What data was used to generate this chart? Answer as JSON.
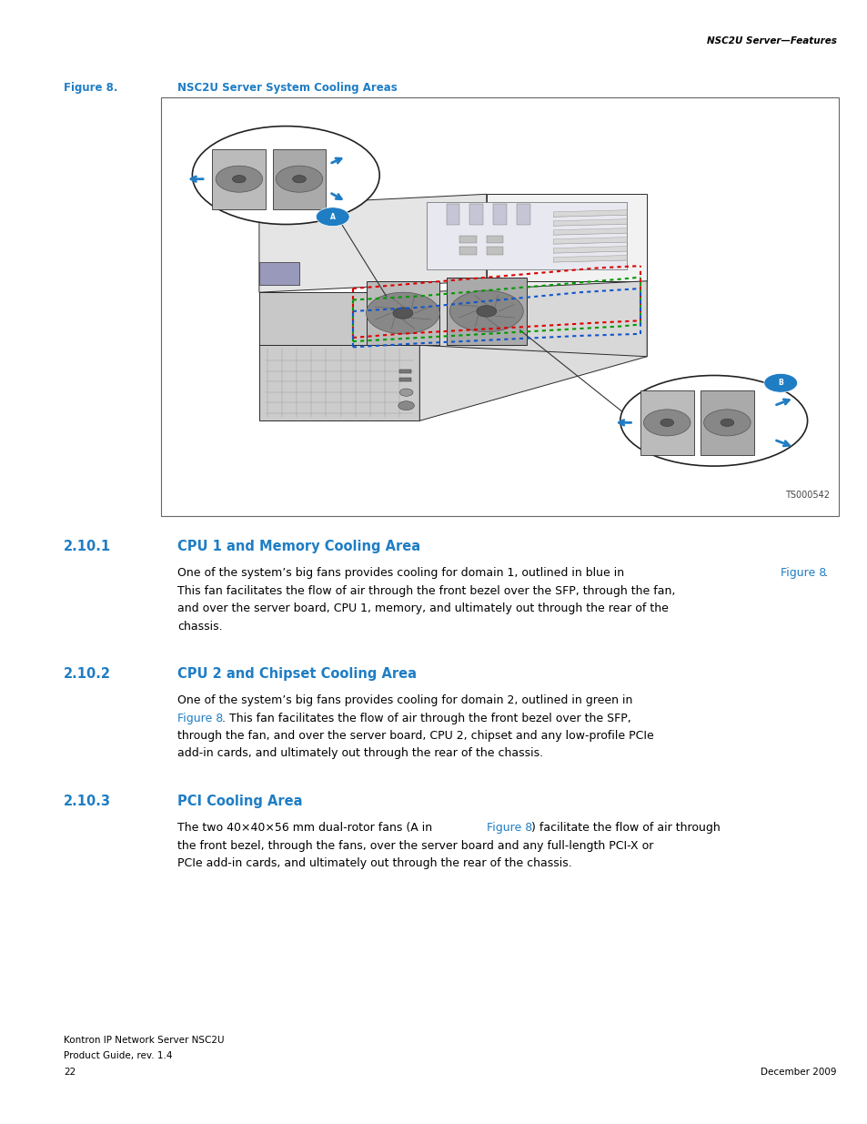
{
  "page_header_right": "NSC2U Server—Features",
  "figure_label": "Figure 8.",
  "figure_title": "NSC2U Server System Cooling Areas",
  "figure_note": "TS000542",
  "section1_num": "2.10.1",
  "section1_title": "CPU 1 and Memory Cooling Area",
  "section2_num": "2.10.2",
  "section2_title": "CPU 2 and Chipset Cooling Area",
  "section3_num": "2.10.3",
  "section3_title": "PCI Cooling Area",
  "section1_body_pre": "One of the system’s big fans provides cooling for domain 1, outlined in blue in ",
  "section1_body_link": "Figure 8",
  "section1_body_post": ".\nThis fan facilitates the flow of air through the front bezel over the SFP, through the fan,\nand over the server board, CPU 1, memory, and ultimately out through the rear of the\nchassis.",
  "section2_body_pre": "One of the system’s big fans provides cooling for domain 2, outlined in green in\n",
  "section2_body_link": "Figure 8",
  "section2_body_post": ". This fan facilitates the flow of air through the front bezel over the SFP,\nthrough the fan, and over the server board, CPU 2, chipset and any low-profile PCIe\nadd-in cards, and ultimately out through the rear of the chassis.",
  "section3_body_pre": "The two 40×40×56 mm dual-rotor fans (A in ",
  "section3_body_link": "Figure 8",
  "section3_body_post": ") facilitate the flow of air through\nthe front bezel, through the fans, over the server board and any full-length PCI-X or\nPCIe add-in cards, and ultimately out through the rear of the chassis.",
  "footer_left_line1": "Kontron IP Network Server NSC2U",
  "footer_left_line2": "Product Guide, rev. 1.4",
  "footer_left_line3": "22",
  "footer_right": "December 2009",
  "blue_color": "#1F7DC4",
  "black_color": "#000000",
  "box_border_color": "#888888",
  "diagram_bg": "#FFFFFF"
}
